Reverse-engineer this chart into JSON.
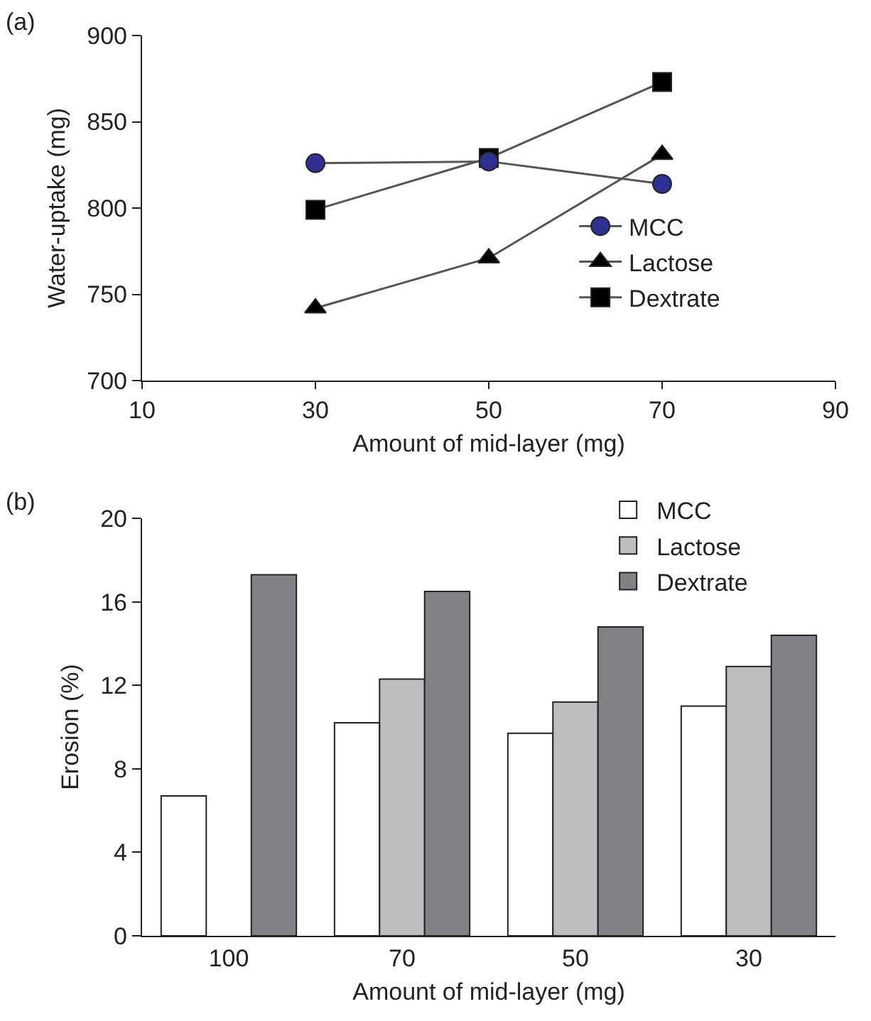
{
  "chart_data": [
    {
      "type": "line",
      "xlabel": "Amount of mid-layer (mg)",
      "ylabel": "Water-uptake (mg)",
      "annotations": [
        "(a)"
      ],
      "x": [
        30,
        50,
        70
      ],
      "xlim": [
        10,
        90
      ],
      "xticks": [
        10,
        30,
        50,
        70,
        90
      ],
      "ylim": [
        700,
        900
      ],
      "yticks": [
        700,
        750,
        800,
        850,
        900
      ],
      "grid": false,
      "legend": "right",
      "line_style": "solid",
      "series": [
        {
          "name": "MCC",
          "color": "#2e3192",
          "marker": "circle",
          "values": [
            826,
            827,
            814
          ]
        },
        {
          "name": "Lactose",
          "color": "#000000",
          "marker": "triangle",
          "values": [
            742,
            771,
            831
          ]
        },
        {
          "name": "Dextrate",
          "color": "#000000",
          "marker": "square",
          "values": [
            799,
            829,
            873
          ]
        }
      ]
    },
    {
      "type": "bar",
      "xlabel": "Amount of mid-layer (mg)",
      "ylabel": "Erosion (%)",
      "annotations": [
        "(b)"
      ],
      "categories": [
        "100",
        "70",
        "50",
        "30"
      ],
      "ylim": [
        0,
        20
      ],
      "yticks": [
        0,
        4,
        8,
        12,
        16,
        20
      ],
      "grid": false,
      "legend": "top right",
      "series": [
        {
          "name": "MCC",
          "color": "#ffffff",
          "values": [
            6.7,
            10.2,
            9.7,
            11.0
          ]
        },
        {
          "name": "Lactose",
          "color": "#bcbec0",
          "values": [
            null,
            12.3,
            11.2,
            12.9
          ]
        },
        {
          "name": "Dextrate",
          "color": "#808285",
          "values": [
            17.3,
            16.5,
            14.8,
            14.4
          ]
        }
      ]
    }
  ]
}
